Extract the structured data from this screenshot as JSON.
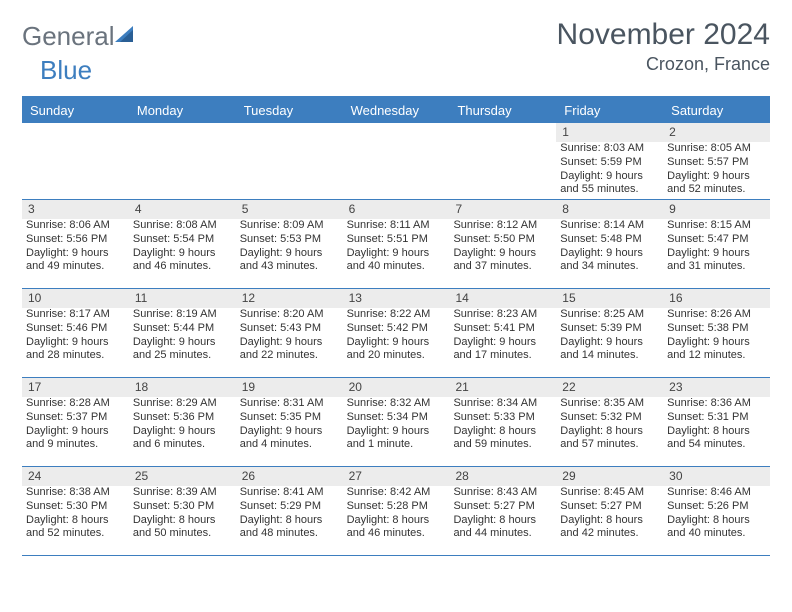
{
  "logo": {
    "text1": "General",
    "text2": "Blue"
  },
  "header": {
    "month": "November 2024",
    "location": "Crozon, France"
  },
  "colors": {
    "accent": "#3d7ebf",
    "header_text": "#4a5560",
    "day_bg": "#ececec",
    "text": "#333333"
  },
  "day_names": [
    "Sunday",
    "Monday",
    "Tuesday",
    "Wednesday",
    "Thursday",
    "Friday",
    "Saturday"
  ],
  "weeks": [
    [
      {
        "empty": true
      },
      {
        "empty": true
      },
      {
        "empty": true
      },
      {
        "empty": true
      },
      {
        "empty": true
      },
      {
        "n": "1",
        "sr": "Sunrise: 8:03 AM",
        "ss": "Sunset: 5:59 PM",
        "dl": "Daylight: 9 hours and 55 minutes."
      },
      {
        "n": "2",
        "sr": "Sunrise: 8:05 AM",
        "ss": "Sunset: 5:57 PM",
        "dl": "Daylight: 9 hours and 52 minutes."
      }
    ],
    [
      {
        "n": "3",
        "sr": "Sunrise: 8:06 AM",
        "ss": "Sunset: 5:56 PM",
        "dl": "Daylight: 9 hours and 49 minutes."
      },
      {
        "n": "4",
        "sr": "Sunrise: 8:08 AM",
        "ss": "Sunset: 5:54 PM",
        "dl": "Daylight: 9 hours and 46 minutes."
      },
      {
        "n": "5",
        "sr": "Sunrise: 8:09 AM",
        "ss": "Sunset: 5:53 PM",
        "dl": "Daylight: 9 hours and 43 minutes."
      },
      {
        "n": "6",
        "sr": "Sunrise: 8:11 AM",
        "ss": "Sunset: 5:51 PM",
        "dl": "Daylight: 9 hours and 40 minutes."
      },
      {
        "n": "7",
        "sr": "Sunrise: 8:12 AM",
        "ss": "Sunset: 5:50 PM",
        "dl": "Daylight: 9 hours and 37 minutes."
      },
      {
        "n": "8",
        "sr": "Sunrise: 8:14 AM",
        "ss": "Sunset: 5:48 PM",
        "dl": "Daylight: 9 hours and 34 minutes."
      },
      {
        "n": "9",
        "sr": "Sunrise: 8:15 AM",
        "ss": "Sunset: 5:47 PM",
        "dl": "Daylight: 9 hours and 31 minutes."
      }
    ],
    [
      {
        "n": "10",
        "sr": "Sunrise: 8:17 AM",
        "ss": "Sunset: 5:46 PM",
        "dl": "Daylight: 9 hours and 28 minutes."
      },
      {
        "n": "11",
        "sr": "Sunrise: 8:19 AM",
        "ss": "Sunset: 5:44 PM",
        "dl": "Daylight: 9 hours and 25 minutes."
      },
      {
        "n": "12",
        "sr": "Sunrise: 8:20 AM",
        "ss": "Sunset: 5:43 PM",
        "dl": "Daylight: 9 hours and 22 minutes."
      },
      {
        "n": "13",
        "sr": "Sunrise: 8:22 AM",
        "ss": "Sunset: 5:42 PM",
        "dl": "Daylight: 9 hours and 20 minutes."
      },
      {
        "n": "14",
        "sr": "Sunrise: 8:23 AM",
        "ss": "Sunset: 5:41 PM",
        "dl": "Daylight: 9 hours and 17 minutes."
      },
      {
        "n": "15",
        "sr": "Sunrise: 8:25 AM",
        "ss": "Sunset: 5:39 PM",
        "dl": "Daylight: 9 hours and 14 minutes."
      },
      {
        "n": "16",
        "sr": "Sunrise: 8:26 AM",
        "ss": "Sunset: 5:38 PM",
        "dl": "Daylight: 9 hours and 12 minutes."
      }
    ],
    [
      {
        "n": "17",
        "sr": "Sunrise: 8:28 AM",
        "ss": "Sunset: 5:37 PM",
        "dl": "Daylight: 9 hours and 9 minutes."
      },
      {
        "n": "18",
        "sr": "Sunrise: 8:29 AM",
        "ss": "Sunset: 5:36 PM",
        "dl": "Daylight: 9 hours and 6 minutes."
      },
      {
        "n": "19",
        "sr": "Sunrise: 8:31 AM",
        "ss": "Sunset: 5:35 PM",
        "dl": "Daylight: 9 hours and 4 minutes."
      },
      {
        "n": "20",
        "sr": "Sunrise: 8:32 AM",
        "ss": "Sunset: 5:34 PM",
        "dl": "Daylight: 9 hours and 1 minute."
      },
      {
        "n": "21",
        "sr": "Sunrise: 8:34 AM",
        "ss": "Sunset: 5:33 PM",
        "dl": "Daylight: 8 hours and 59 minutes."
      },
      {
        "n": "22",
        "sr": "Sunrise: 8:35 AM",
        "ss": "Sunset: 5:32 PM",
        "dl": "Daylight: 8 hours and 57 minutes."
      },
      {
        "n": "23",
        "sr": "Sunrise: 8:36 AM",
        "ss": "Sunset: 5:31 PM",
        "dl": "Daylight: 8 hours and 54 minutes."
      }
    ],
    [
      {
        "n": "24",
        "sr": "Sunrise: 8:38 AM",
        "ss": "Sunset: 5:30 PM",
        "dl": "Daylight: 8 hours and 52 minutes."
      },
      {
        "n": "25",
        "sr": "Sunrise: 8:39 AM",
        "ss": "Sunset: 5:30 PM",
        "dl": "Daylight: 8 hours and 50 minutes."
      },
      {
        "n": "26",
        "sr": "Sunrise: 8:41 AM",
        "ss": "Sunset: 5:29 PM",
        "dl": "Daylight: 8 hours and 48 minutes."
      },
      {
        "n": "27",
        "sr": "Sunrise: 8:42 AM",
        "ss": "Sunset: 5:28 PM",
        "dl": "Daylight: 8 hours and 46 minutes."
      },
      {
        "n": "28",
        "sr": "Sunrise: 8:43 AM",
        "ss": "Sunset: 5:27 PM",
        "dl": "Daylight: 8 hours and 44 minutes."
      },
      {
        "n": "29",
        "sr": "Sunrise: 8:45 AM",
        "ss": "Sunset: 5:27 PM",
        "dl": "Daylight: 8 hours and 42 minutes."
      },
      {
        "n": "30",
        "sr": "Sunrise: 8:46 AM",
        "ss": "Sunset: 5:26 PM",
        "dl": "Daylight: 8 hours and 40 minutes."
      }
    ]
  ]
}
